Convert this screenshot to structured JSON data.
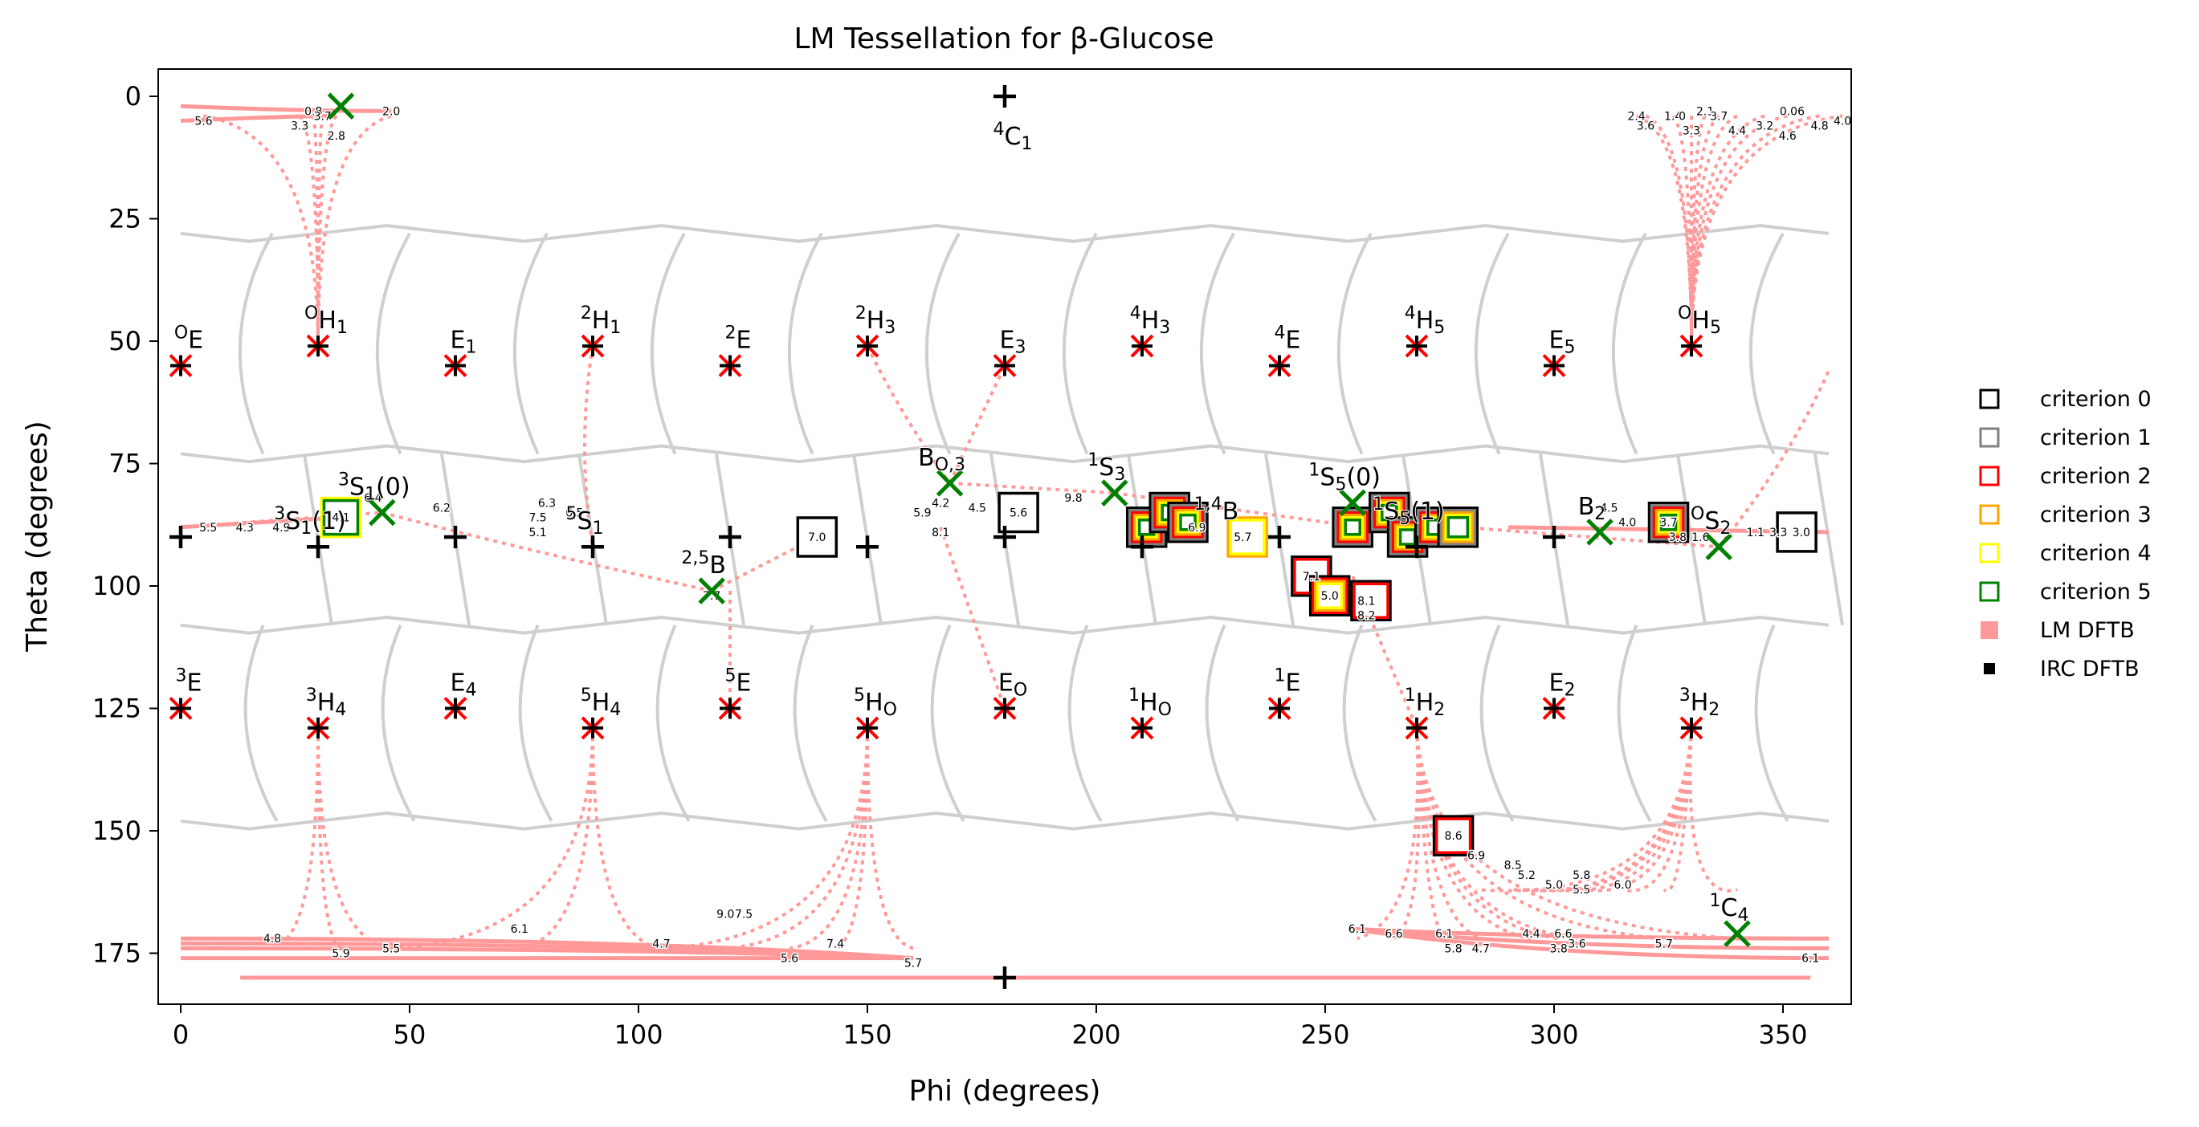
{
  "chart_data": {
    "type": "scatter",
    "title": "LM Tessellation for β-Glucose",
    "xlabel": "Phi (degrees)",
    "ylabel": "Theta (degrees)",
    "xlim": [
      -5,
      365
    ],
    "ylim": [
      185,
      -5
    ],
    "x_ticks": [
      0,
      50,
      100,
      150,
      200,
      250,
      300,
      350
    ],
    "y_ticks": [
      0,
      25,
      50,
      75,
      100,
      125,
      150,
      175
    ],
    "legend": {
      "position": "right",
      "entries": [
        {
          "label": "criterion 0",
          "marker": "open-square",
          "color": "#000000"
        },
        {
          "label": "criterion 1",
          "marker": "open-square",
          "color": "#808080"
        },
        {
          "label": "criterion 2",
          "marker": "open-square",
          "color": "#ff0000"
        },
        {
          "label": "criterion 3",
          "marker": "open-square",
          "color": "#ffa500"
        },
        {
          "label": "criterion 4",
          "marker": "open-square",
          "color": "#ffff00"
        },
        {
          "label": "criterion 5",
          "marker": "open-square",
          "color": "#008000"
        },
        {
          "label": "LM DFTB",
          "marker": "filled-square",
          "color": "#ff9999"
        },
        {
          "label": "IRC DFTB",
          "marker": "filled-square",
          "color": "#000000"
        }
      ]
    },
    "canonical_points": [
      {
        "label": "4C1",
        "phi": 180,
        "theta": 0,
        "marker": "plus"
      },
      {
        "label": "OE",
        "phi": 0,
        "theta": 55
      },
      {
        "label": "OH1",
        "phi": 30,
        "theta": 51
      },
      {
        "label": "E1",
        "phi": 60,
        "theta": 55
      },
      {
        "label": "2H1",
        "phi": 90,
        "theta": 51
      },
      {
        "label": "2E",
        "phi": 120,
        "theta": 55
      },
      {
        "label": "2H3",
        "phi": 150,
        "theta": 51
      },
      {
        "label": "E3",
        "phi": 180,
        "theta": 55
      },
      {
        "label": "4H3",
        "phi": 210,
        "theta": 51
      },
      {
        "label": "4E",
        "phi": 240,
        "theta": 55
      },
      {
        "label": "4H5",
        "phi": 270,
        "theta": 51
      },
      {
        "label": "E5",
        "phi": 300,
        "theta": 55
      },
      {
        "label": "OH5",
        "phi": 330,
        "theta": 51
      },
      {
        "label": "3E",
        "phi": 0,
        "theta": 125
      },
      {
        "label": "3H4",
        "phi": 30,
        "theta": 129
      },
      {
        "label": "E4",
        "phi": 60,
        "theta": 125
      },
      {
        "label": "5H4",
        "phi": 90,
        "theta": 129
      },
      {
        "label": "5E",
        "phi": 120,
        "theta": 125
      },
      {
        "label": "5HO",
        "phi": 150,
        "theta": 129
      },
      {
        "label": "EO",
        "phi": 180,
        "theta": 125
      },
      {
        "label": "1HO",
        "phi": 210,
        "theta": 129
      },
      {
        "label": "1E",
        "phi": 240,
        "theta": 125
      },
      {
        "label": "1H2",
        "phi": 270,
        "theta": 129
      },
      {
        "label": "E2",
        "phi": 300,
        "theta": 125
      },
      {
        "label": "3H2",
        "phi": 330,
        "theta": 129
      }
    ],
    "boat_skew_points": [
      {
        "label": "3S1(1)",
        "phi": 30,
        "theta": 92
      },
      {
        "label": "3S1(0)",
        "phi": 44,
        "theta": 85
      },
      {
        "label": "5S1",
        "phi": 90,
        "theta": 92
      },
      {
        "label": "2,5B",
        "phi": 116,
        "theta": 101
      },
      {
        "label": "BO,3",
        "phi": 168,
        "theta": 79
      },
      {
        "label": "1S3",
        "phi": 204,
        "theta": 81
      },
      {
        "label": "1,4B",
        "phi": 228,
        "theta": 90
      },
      {
        "label": "1S5(0)",
        "phi": 256,
        "theta": 83
      },
      {
        "label": "1S5(1)",
        "phi": 270,
        "theta": 90
      },
      {
        "label": "B2",
        "phi": 310,
        "theta": 89
      },
      {
        "label": "OS2",
        "phi": 336,
        "theta": 92
      },
      {
        "label": "1C4",
        "phi": 340,
        "theta": 171
      }
    ],
    "lm_labels": [
      {
        "phi": 5,
        "theta": 5,
        "text": "5.6"
      },
      {
        "phi": 26,
        "theta": 6,
        "text": "3.3"
      },
      {
        "phi": 29,
        "theta": 3,
        "text": "0.8"
      },
      {
        "phi": 31,
        "theta": 4,
        "text": "3.7"
      },
      {
        "phi": 34,
        "theta": 8,
        "text": "2.8"
      },
      {
        "phi": 46,
        "theta": 3,
        "text": "2.0"
      },
      {
        "phi": 318,
        "theta": 4,
        "text": "2.4"
      },
      {
        "phi": 320,
        "theta": 6,
        "text": "3.6"
      },
      {
        "phi": 326,
        "theta": 4,
        "text": "1.4"
      },
      {
        "phi": 328,
        "theta": 4,
        "text": "0"
      },
      {
        "phi": 330,
        "theta": 7,
        "text": "3.3"
      },
      {
        "phi": 333,
        "theta": 3,
        "text": "2.1"
      },
      {
        "phi": 336,
        "theta": 4,
        "text": "3.7"
      },
      {
        "phi": 340,
        "theta": 7,
        "text": "4.4"
      },
      {
        "phi": 346,
        "theta": 6,
        "text": "3.2"
      },
      {
        "phi": 352,
        "theta": 3,
        "text": "0.06"
      },
      {
        "phi": 351,
        "theta": 8,
        "text": "4.6"
      },
      {
        "phi": 358,
        "theta": 6,
        "text": "4.8"
      },
      {
        "phi": 363,
        "theta": 5,
        "text": "4.0"
      },
      {
        "phi": 6,
        "theta": 88,
        "text": "5.5"
      },
      {
        "phi": 14,
        "theta": 88,
        "text": "4.3"
      },
      {
        "phi": 22,
        "theta": 88,
        "text": "4.9"
      },
      {
        "phi": 35,
        "theta": 86,
        "text": "4.1"
      },
      {
        "phi": 42,
        "theta": 82,
        "text": "6.4"
      },
      {
        "phi": 57,
        "theta": 84,
        "text": "6.2"
      },
      {
        "phi": 80,
        "theta": 83,
        "text": "6.3"
      },
      {
        "phi": 86,
        "theta": 85,
        "text": "6.5"
      },
      {
        "phi": 78,
        "theta": 89,
        "text": "5.1"
      },
      {
        "phi": 78,
        "theta": 86,
        "text": "7.5"
      },
      {
        "phi": 116,
        "theta": 102,
        "text": "7.7"
      },
      {
        "phi": 139,
        "theta": 90,
        "text": "7.0"
      },
      {
        "phi": 162,
        "theta": 85,
        "text": "5.9"
      },
      {
        "phi": 166,
        "theta": 89,
        "text": "8.1"
      },
      {
        "phi": 166,
        "theta": 83,
        "text": "4.2"
      },
      {
        "phi": 174,
        "theta": 84,
        "text": "4.5"
      },
      {
        "phi": 183,
        "theta": 85,
        "text": "5.6"
      },
      {
        "phi": 195,
        "theta": 82,
        "text": "9.8"
      },
      {
        "phi": 222,
        "theta": 88,
        "text": "6.9"
      },
      {
        "phi": 232,
        "theta": 90,
        "text": "5.7"
      },
      {
        "phi": 247,
        "theta": 98,
        "text": "7.1"
      },
      {
        "phi": 251,
        "theta": 102,
        "text": "5.0"
      },
      {
        "phi": 259,
        "theta": 103,
        "text": "8.1"
      },
      {
        "phi": 259,
        "theta": 106,
        "text": "8.2"
      },
      {
        "phi": 278,
        "theta": 151,
        "text": "8.6"
      },
      {
        "phi": 283,
        "theta": 155,
        "text": "6.9"
      },
      {
        "phi": 291,
        "theta": 157,
        "text": "8.5"
      },
      {
        "phi": 294,
        "theta": 159,
        "text": "5.2"
      },
      {
        "phi": 300,
        "theta": 161,
        "text": "5.0"
      },
      {
        "phi": 306,
        "theta": 159,
        "text": "5.8"
      },
      {
        "phi": 306,
        "theta": 162,
        "text": "5.5"
      },
      {
        "phi": 315,
        "theta": 161,
        "text": "6.0"
      },
      {
        "phi": 257,
        "theta": 170,
        "text": "6.1"
      },
      {
        "phi": 265,
        "theta": 171,
        "text": "6.6"
      },
      {
        "phi": 276,
        "theta": 171,
        "text": "6.1"
      },
      {
        "phi": 278,
        "theta": 174,
        "text": "5.8"
      },
      {
        "phi": 284,
        "theta": 174,
        "text": "4.7"
      },
      {
        "phi": 295,
        "theta": 171,
        "text": "4.4"
      },
      {
        "phi": 301,
        "theta": 174,
        "text": "3.8"
      },
      {
        "phi": 302,
        "theta": 171,
        "text": "6.6"
      },
      {
        "phi": 305,
        "theta": 173,
        "text": "3.6"
      },
      {
        "phi": 324,
        "theta": 173,
        "text": "5.7"
      },
      {
        "phi": 356,
        "theta": 176,
        "text": "6.1"
      },
      {
        "phi": 20,
        "theta": 172,
        "text": "4.8"
      },
      {
        "phi": 35,
        "theta": 175,
        "text": "5.9"
      },
      {
        "phi": 46,
        "theta": 174,
        "text": "5.5"
      },
      {
        "phi": 74,
        "theta": 170,
        "text": "6.1"
      },
      {
        "phi": 105,
        "theta": 173,
        "text": "4.7"
      },
      {
        "phi": 119,
        "theta": 167,
        "text": "9.0"
      },
      {
        "phi": 123,
        "theta": 167,
        "text": "7.5"
      },
      {
        "phi": 133,
        "theta": 176,
        "text": "5.6"
      },
      {
        "phi": 143,
        "theta": 173,
        "text": "7.4"
      },
      {
        "phi": 160,
        "theta": 177,
        "text": "5.7"
      },
      {
        "phi": 325,
        "theta": 87,
        "text": "3.7"
      },
      {
        "phi": 327,
        "theta": 90,
        "text": "3.8"
      },
      {
        "phi": 332,
        "theta": 90,
        "text": "1.6"
      },
      {
        "phi": 344,
        "theta": 89,
        "text": "1.1"
      },
      {
        "phi": 349,
        "theta": 89,
        "text": "3.3"
      },
      {
        "phi": 354,
        "theta": 89,
        "text": "3.0"
      },
      {
        "phi": 312,
        "theta": 84,
        "text": "4.5"
      },
      {
        "phi": 316,
        "theta": 87,
        "text": "4.0"
      }
    ],
    "criterion_boxes": [
      {
        "phi": 35,
        "theta": 86,
        "criteria": [
          4,
          5
        ]
      },
      {
        "phi": 139,
        "theta": 90,
        "criteria": [
          0
        ]
      },
      {
        "phi": 183,
        "theta": 85,
        "criteria": [
          0
        ]
      },
      {
        "phi": 211,
        "theta": 88,
        "criteria": [
          0,
          1,
          2,
          3,
          4,
          5
        ]
      },
      {
        "phi": 216,
        "theta": 85,
        "criteria": [
          0,
          1,
          2,
          3,
          4,
          5
        ]
      },
      {
        "phi": 220,
        "theta": 87,
        "criteria": [
          0,
          1,
          2,
          3,
          4,
          5
        ]
      },
      {
        "phi": 233,
        "theta": 90,
        "criteria": [
          3,
          4
        ]
      },
      {
        "phi": 247,
        "theta": 98,
        "criteria": [
          0,
          2
        ]
      },
      {
        "phi": 251,
        "theta": 102,
        "criteria": [
          0,
          2,
          3,
          4
        ]
      },
      {
        "phi": 256,
        "theta": 88,
        "criteria": [
          0,
          1,
          2,
          3,
          4,
          5
        ]
      },
      {
        "phi": 260,
        "theta": 103,
        "criteria": [
          0,
          2
        ]
      },
      {
        "phi": 264,
        "theta": 85,
        "criteria": [
          0,
          1,
          2,
          3,
          4,
          5
        ]
      },
      {
        "phi": 268,
        "theta": 90,
        "criteria": [
          0,
          1,
          2,
          3,
          4,
          5
        ]
      },
      {
        "phi": 274,
        "theta": 88,
        "criteria": [
          0,
          1,
          2,
          3,
          4,
          5
        ]
      },
      {
        "phi": 279,
        "theta": 88,
        "criteria": [
          0,
          1,
          3,
          4,
          5
        ]
      },
      {
        "phi": 278,
        "theta": 151,
        "criteria": [
          0,
          2
        ]
      },
      {
        "phi": 325,
        "theta": 87,
        "criteria": [
          0,
          1,
          2,
          3,
          4,
          5
        ]
      },
      {
        "phi": 353,
        "theta": 89,
        "criteria": [
          0
        ]
      }
    ],
    "green_x": [
      {
        "phi": 35,
        "theta": 2
      },
      {
        "phi": 44,
        "theta": 85
      },
      {
        "phi": 116,
        "theta": 101
      },
      {
        "phi": 168,
        "theta": 79
      },
      {
        "phi": 204,
        "theta": 81
      },
      {
        "phi": 256,
        "theta": 83
      },
      {
        "phi": 310,
        "theta": 89
      },
      {
        "phi": 336,
        "theta": 92
      },
      {
        "phi": 340,
        "theta": 171
      }
    ],
    "plus_marks": [
      {
        "phi": 180,
        "theta": 0
      },
      {
        "phi": 180,
        "theta": 180
      },
      {
        "phi": 0,
        "theta": 90
      },
      {
        "phi": 30,
        "theta": 92
      },
      {
        "phi": 60,
        "theta": 90
      },
      {
        "phi": 90,
        "theta": 92
      },
      {
        "phi": 120,
        "theta": 90
      },
      {
        "phi": 150,
        "theta": 92
      },
      {
        "phi": 180,
        "theta": 90
      },
      {
        "phi": 210,
        "theta": 92
      },
      {
        "phi": 240,
        "theta": 90
      },
      {
        "phi": 270,
        "theta": 92
      },
      {
        "phi": 300,
        "theta": 90
      }
    ]
  }
}
